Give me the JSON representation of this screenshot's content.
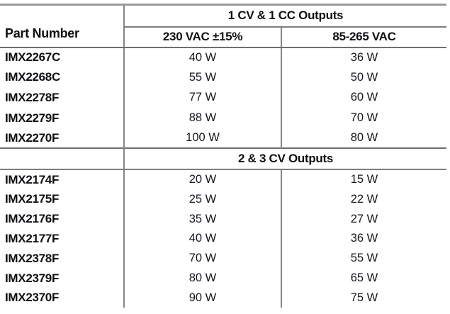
{
  "table": {
    "corner_header": "Part Number",
    "sections": [
      {
        "title": "1 CV & 1 CC Outputs",
        "col_headers": [
          "230 VAC ±15%",
          "85-265 VAC"
        ],
        "rows": [
          {
            "part": "IMX2267C",
            "w230": "40 W",
            "w85": "36 W"
          },
          {
            "part": "IMX2268C",
            "w230": "55 W",
            "w85": "50 W"
          },
          {
            "part": "IMX2278F",
            "w230": "77 W",
            "w85": "60 W"
          },
          {
            "part": "IMX2279F",
            "w230": "88 W",
            "w85": "70 W"
          },
          {
            "part": "IMX2270F",
            "w230": "100 W",
            "w85": "80 W"
          }
        ]
      },
      {
        "title": "2 & 3 CV Outputs",
        "rows": [
          {
            "part": "IMX2174F",
            "w230": "20 W",
            "w85": "15 W"
          },
          {
            "part": "IMX2175F",
            "w230": "25 W",
            "w85": "22 W"
          },
          {
            "part": "IMX2176F",
            "w230": "35 W",
            "w85": "27 W"
          },
          {
            "part": "IMX2177F",
            "w230": "40 W",
            "w85": "36 W"
          },
          {
            "part": "IMX2378F",
            "w230": "70 W",
            "w85": "55 W"
          },
          {
            "part": "IMX2379F",
            "w230": "80 W",
            "w85": "65 W"
          },
          {
            "part": "IMX2370F",
            "w230": "90 W",
            "w85": "75 W"
          }
        ]
      }
    ]
  },
  "colors": {
    "text": "#0d0f12",
    "rule_gray": "#7d7d7d",
    "rule_dark": "#6e6e6e",
    "rule_light": "#9b9b9b",
    "background": "#ffffff"
  }
}
